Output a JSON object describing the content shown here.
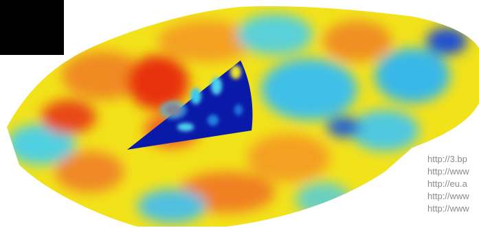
{
  "overlay_text": [
    "http://3.bp",
    "http://www",
    "http://eu.a",
    "http://www",
    "http://www"
  ]
}
